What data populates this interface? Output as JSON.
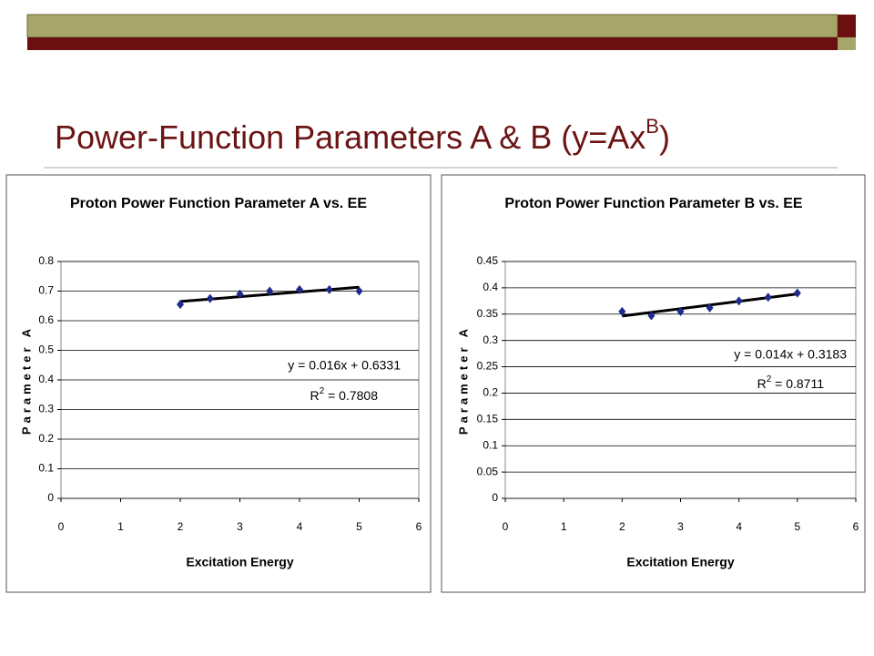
{
  "slide": {
    "title": "Power-Function Parameters A & B (y=Ax",
    "title_sup": "B",
    "title_end": ")"
  },
  "chart_data": [
    {
      "type": "scatter",
      "title": "Proton Power Function Parameter A vs. EE",
      "x_label": "Excitation Energy",
      "y_label": "Parameter A",
      "series": [
        {
          "name": "Parameter A",
          "color": "#1f2a8a",
          "x": [
            2,
            2.5,
            3,
            3.5,
            4,
            4.5,
            5
          ],
          "values": [
            0.655,
            0.675,
            0.69,
            0.7,
            0.705,
            0.705,
            0.7
          ]
        }
      ],
      "trendline": {
        "slope": 0.016,
        "intercept": 0.6331,
        "color": "#000000",
        "equation": "y = 0.016x + 0.6331",
        "r2_start": "R",
        "r2_sup": "2",
        "r2_end": " = 0.7808"
      },
      "xlim": [
        0,
        6
      ],
      "xticks": [
        0,
        1,
        2,
        3,
        4,
        5,
        6
      ],
      "ylim": [
        0,
        0.8
      ],
      "yticks": [
        0,
        0.1,
        0.2,
        0.3,
        0.4,
        0.5,
        0.6,
        0.7,
        0.8
      ],
      "grid": true
    },
    {
      "type": "scatter",
      "title": "Proton Power Function Parameter B vs. EE",
      "x_label": "Excitation Energy",
      "y_label": "Parameter A",
      "series": [
        {
          "name": "Parameter B",
          "color": "#1f2a8a",
          "x": [
            2,
            2.5,
            3,
            3.5,
            4,
            4.5,
            5
          ],
          "values": [
            0.355,
            0.347,
            0.355,
            0.362,
            0.375,
            0.382,
            0.39
          ]
        }
      ],
      "trendline": {
        "slope": 0.014,
        "intercept": 0.3183,
        "color": "#000000",
        "equation": "y = 0.014x + 0.3183",
        "r2_start": "R",
        "r2_sup": "2",
        "r2_end": " = 0.8711"
      },
      "xlim": [
        0,
        6
      ],
      "xticks": [
        0,
        1,
        2,
        3,
        4,
        5,
        6
      ],
      "ylim": [
        0,
        0.45
      ],
      "yticks": [
        0,
        0.05,
        0.1,
        0.15,
        0.2,
        0.25,
        0.3,
        0.35,
        0.4,
        0.45
      ],
      "grid": true
    }
  ]
}
